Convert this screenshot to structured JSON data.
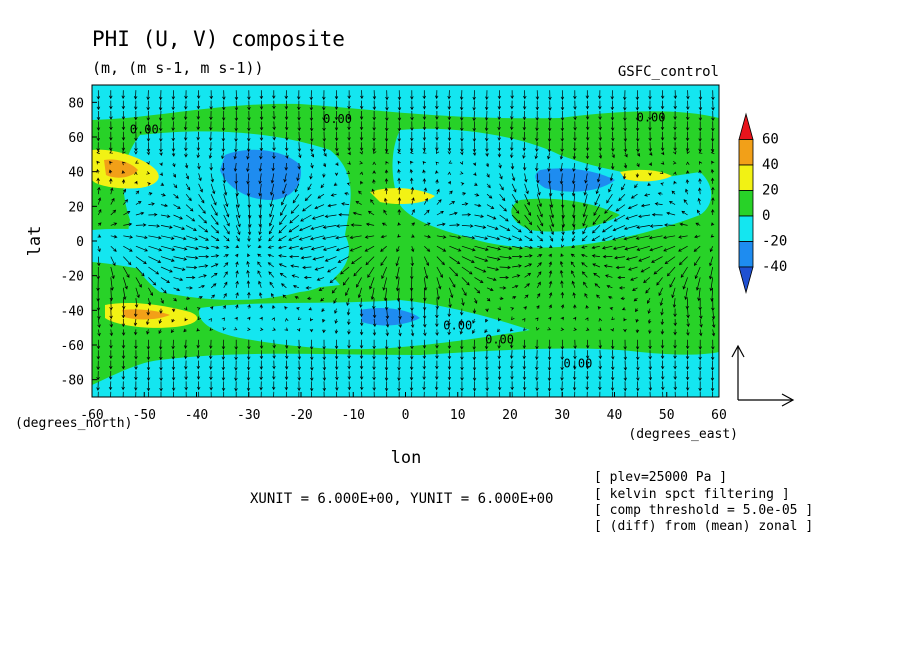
{
  "chart_data": {
    "type": "contour",
    "title": "PHI (U, V) composite",
    "subtitle": "(m, (m s-1, m s-1))",
    "source_label": "GSFC_control",
    "xlabel": "lon",
    "ylabel": "lat",
    "x_unit_label": "(degrees_east)",
    "y_unit_label": "(degrees_north)",
    "xlim": [
      -60,
      60
    ],
    "ylim": [
      -90,
      90
    ],
    "x_ticks": [
      "-60",
      "-50",
      "-40",
      "-30",
      "-20",
      "-10",
      "0",
      "10",
      "20",
      "30",
      "40",
      "50",
      "60"
    ],
    "y_ticks": [
      "80",
      "60",
      "40",
      "20",
      "0",
      "-20",
      "-40",
      "-60",
      "-80"
    ],
    "x_tick_values": [
      -60,
      -50,
      -40,
      -30,
      -20,
      -10,
      0,
      10,
      20,
      30,
      40,
      50,
      60
    ],
    "y_tick_values": [
      80,
      60,
      40,
      20,
      0,
      -20,
      -40,
      -60,
      -80
    ],
    "colorbar": {
      "levels": [
        -40,
        -20,
        0,
        20,
        40,
        60
      ],
      "labels": [
        "60",
        "40",
        "20",
        "0",
        "-20",
        "-40"
      ],
      "colors": [
        "#e8141c",
        "#f2a018",
        "#f2f214",
        "#28d228",
        "#14e6f0",
        "#1e8cf0",
        "#1e50d2"
      ]
    },
    "contour_labels": [
      {
        "text": "0.00",
        "x": -50,
        "y": 62
      },
      {
        "text": "0.00",
        "x": -13,
        "y": 68
      },
      {
        "text": "0.00",
        "x": 47,
        "y": 69
      },
      {
        "text": "0.00",
        "x": 10,
        "y": -51
      },
      {
        "text": "0.00",
        "x": 18,
        "y": -59
      },
      {
        "text": "0.00",
        "x": 33,
        "y": -73
      }
    ],
    "features": [
      {
        "value": 40,
        "x": -51,
        "y": 40
      },
      {
        "value": 20,
        "x": -52,
        "y": 38
      },
      {
        "value": 20,
        "x": -49,
        "y": -40
      },
      {
        "value": 40,
        "x": -50,
        "y": -40
      },
      {
        "value": 20,
        "x": 5,
        "y": 25
      },
      {
        "value": 20,
        "x": 50,
        "y": 35
      },
      {
        "value": -40,
        "x": -28,
        "y": 45
      },
      {
        "value": -40,
        "x": -5,
        "y": -42
      },
      {
        "value": -20,
        "x": -20,
        "y": 0
      },
      {
        "value": -20,
        "x": 20,
        "y": -70
      }
    ],
    "vector_reference": {
      "xunit_value": "6.000E+00",
      "yunit_value": "6.000E+00"
    }
  },
  "annotations": {
    "unit_line": "XUNIT = 6.000E+00, YUNIT = 6.000E+00",
    "notes": [
      "[ plev=25000 Pa ]",
      "[ kelvin spct filtering ]",
      "[ comp threshold = 5.0e-05 ]",
      "[ (diff) from (mean) zonal ]"
    ]
  }
}
